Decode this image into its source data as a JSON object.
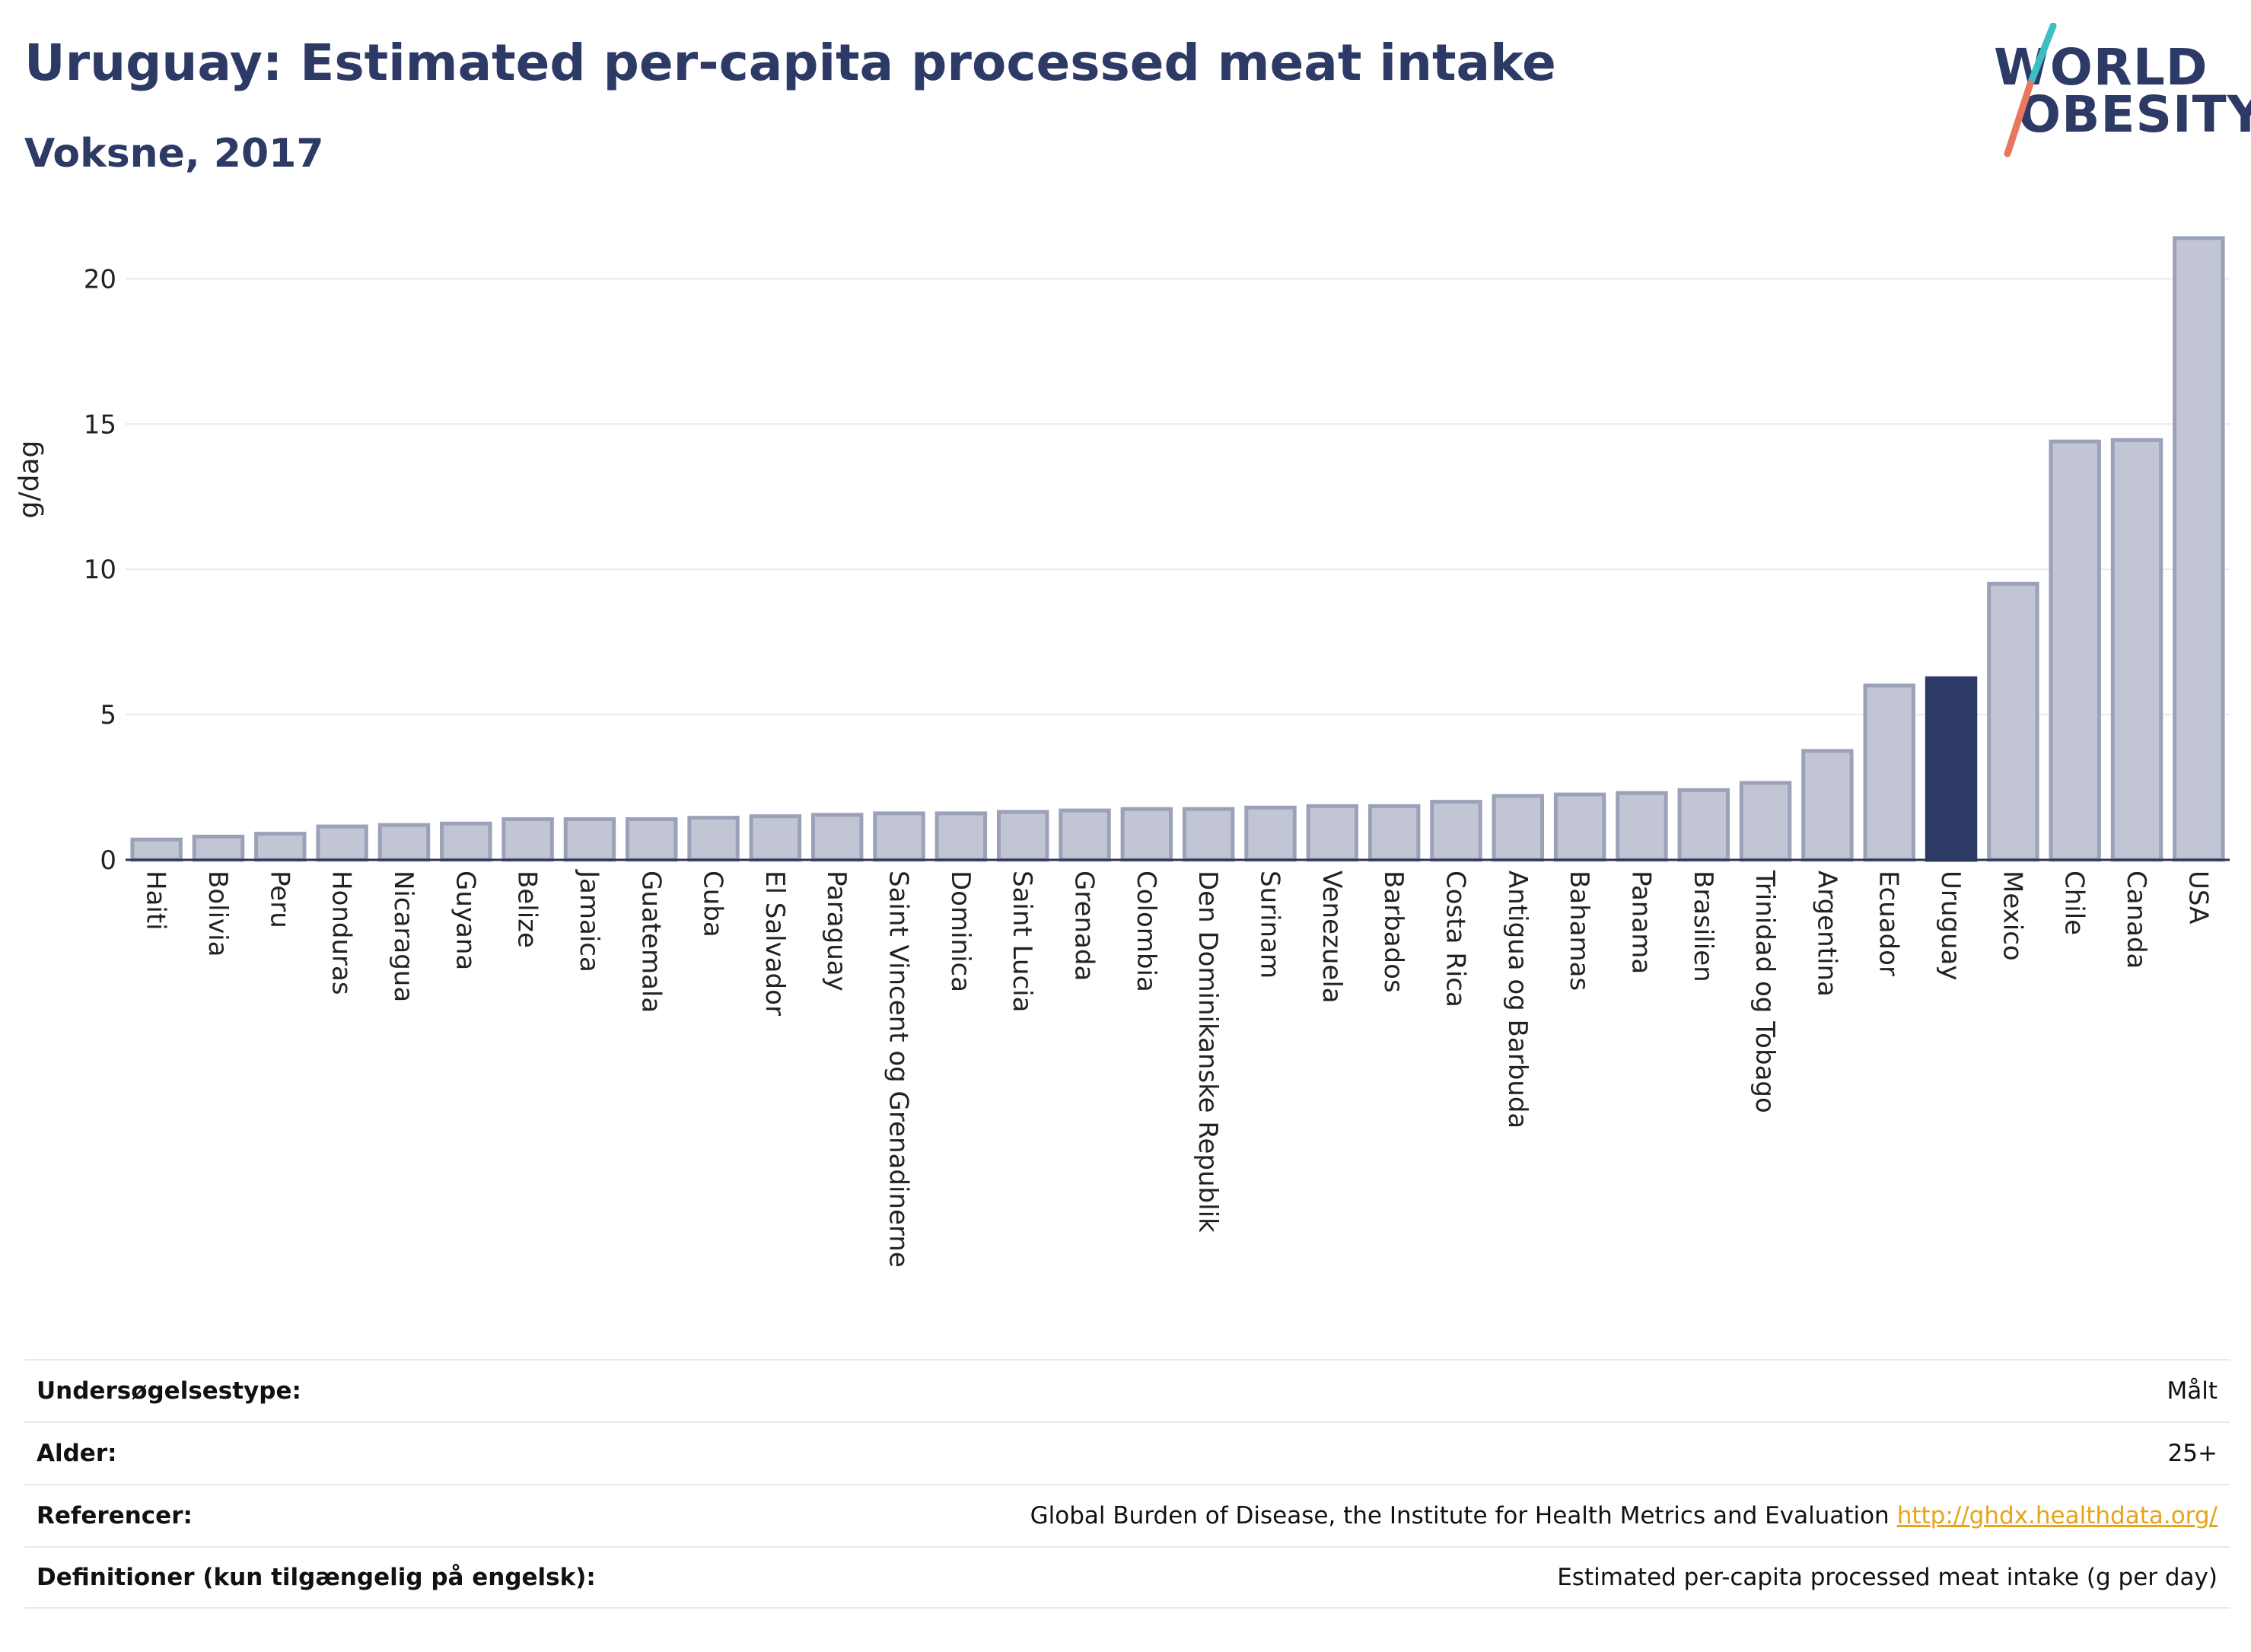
{
  "header": {
    "title": "Uruguay: Estimated per-capita processed meat intake",
    "subtitle": "Voksne, 2017"
  },
  "logo": {
    "line1": "WORLD",
    "line2": "OBESITY",
    "colors": {
      "text": "#2d3a66",
      "slash_top": "#3dbdc4",
      "slash_bottom": "#e9765f"
    }
  },
  "chart_data": {
    "type": "bar",
    "ylabel": "g/dag",
    "xlabel": "",
    "ylim": [
      0,
      22
    ],
    "yticks": [
      0,
      5,
      10,
      15,
      20
    ],
    "grid": true,
    "highlight": "Uruguay",
    "colors": {
      "bar": "#c2c6d4",
      "bar_border": "#9aa1b9",
      "highlight": "#2d3a66"
    },
    "categories": [
      "Haiti",
      "Bolivia",
      "Peru",
      "Honduras",
      "Nicaragua",
      "Guyana",
      "Belize",
      "Jamaica",
      "Guatemala",
      "Cuba",
      "El Salvador",
      "Paraguay",
      "Saint Vincent og Grenadinerne",
      "Dominica",
      "Saint Lucia",
      "Grenada",
      "Colombia",
      "Den Dominikanske Republik",
      "Surinam",
      "Venezuela",
      "Barbados",
      "Costa Rica",
      "Antigua og Barbuda",
      "Bahamas",
      "Panama",
      "Brasilien",
      "Trinidad og Tobago",
      "Argentina",
      "Ecuador",
      "Uruguay",
      "Mexico",
      "Chile",
      "Canada",
      "USA"
    ],
    "values": [
      0.7,
      0.8,
      0.9,
      1.15,
      1.2,
      1.25,
      1.4,
      1.4,
      1.4,
      1.45,
      1.5,
      1.55,
      1.6,
      1.6,
      1.65,
      1.7,
      1.75,
      1.75,
      1.8,
      1.85,
      1.85,
      2.0,
      2.2,
      2.25,
      2.3,
      2.4,
      2.65,
      3.75,
      6.0,
      6.25,
      9.5,
      14.4,
      14.45,
      21.4
    ]
  },
  "meta": {
    "rows": [
      {
        "label": "Undersøgelsestype:",
        "value": "Målt",
        "link": ""
      },
      {
        "label": "Alder:",
        "value": "25+",
        "link": ""
      },
      {
        "label": "Referencer:",
        "value": "Global Burden of Disease, the Institute for Health Metrics and Evaluation",
        "link": "http://ghdx.healthdata.org/"
      },
      {
        "label": "Definitioner (kun tilgængelig på engelsk):",
        "value": "Estimated per-capita processed meat intake (g per day)",
        "link": ""
      }
    ]
  }
}
